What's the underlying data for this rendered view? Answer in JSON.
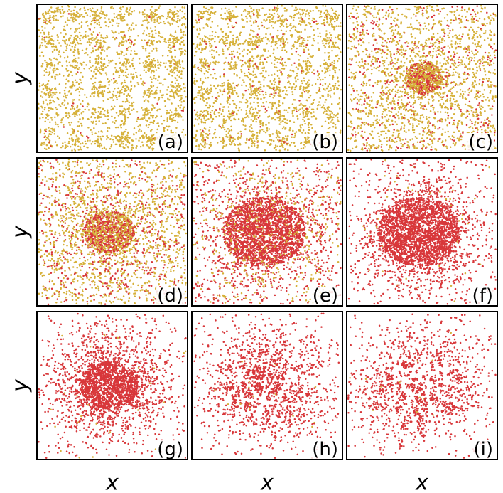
{
  "chart_data": {
    "type": "scatter",
    "layout": "3x3 grid of panels",
    "xlabel": "x",
    "ylabel": "y",
    "axes_ticks": "none",
    "grid": false,
    "legend": "none",
    "colors": {
      "phase_a": "#d6b13a",
      "phase_b": "#d8373a",
      "frame": "#000000"
    },
    "panels": [
      {
        "label": "(a)",
        "red_fraction": 0.02,
        "cluster": 0.0,
        "core_radius": 0.0,
        "cracks": 0
      },
      {
        "label": "(b)",
        "red_fraction": 0.06,
        "cluster": 0.05,
        "core_radius": 0.0,
        "cracks": 0
      },
      {
        "label": "(c)",
        "red_fraction": 0.18,
        "cluster": 0.18,
        "core_radius": 0.12,
        "cracks": 0
      },
      {
        "label": "(d)",
        "red_fraction": 0.3,
        "cluster": 0.3,
        "core_radius": 0.16,
        "cracks": 0
      },
      {
        "label": "(e)",
        "red_fraction": 0.7,
        "cluster": 0.55,
        "core_radius": 0.26,
        "cracks": 0
      },
      {
        "label": "(f)",
        "red_fraction": 0.96,
        "cluster": 0.8,
        "core_radius": 0.26,
        "cracks": 4
      },
      {
        "label": "(g)",
        "red_fraction": 0.98,
        "cluster": 0.85,
        "core_radius": 0.18,
        "cracks": 8
      },
      {
        "label": "(h)",
        "red_fraction": 0.99,
        "cluster": 0.88,
        "core_radius": 0.08,
        "cracks": 12
      },
      {
        "label": "(i)",
        "red_fraction": 0.995,
        "cluster": 0.88,
        "core_radius": 0.0,
        "cracks": 16
      }
    ]
  }
}
